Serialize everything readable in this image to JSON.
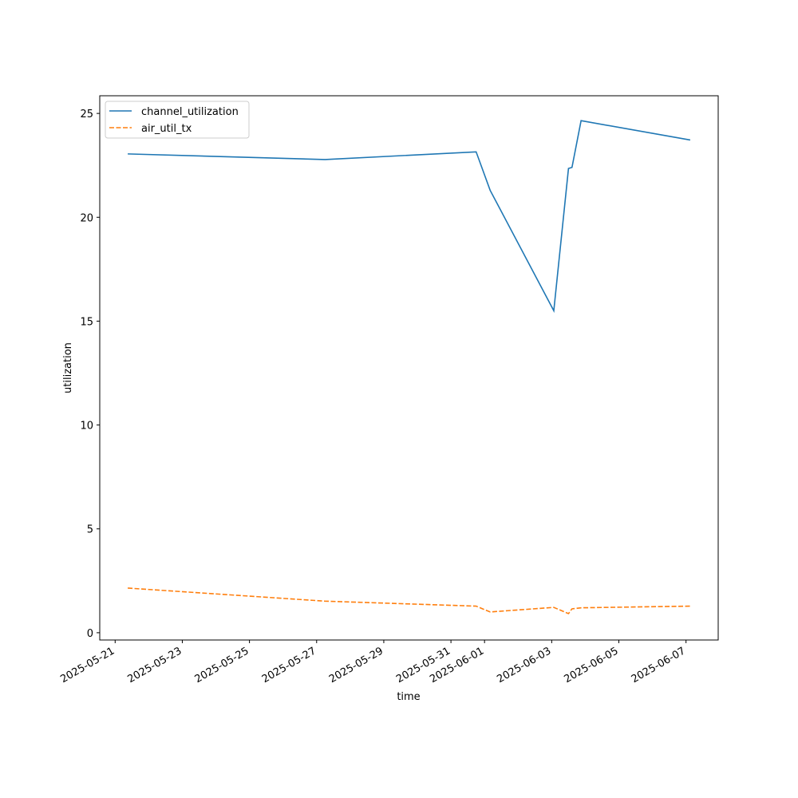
{
  "chart_data": {
    "type": "line",
    "x": [
      "2025-05-21T09:00Z",
      "2025-05-27T06:00Z",
      "2025-05-31T18:00Z",
      "2025-06-01T04:00Z",
      "2025-06-03T01:30Z",
      "2025-06-03T12:00Z",
      "2025-06-03T14:30Z",
      "2025-06-03T21:00Z",
      "2025-06-07T03:00Z"
    ],
    "series": [
      {
        "name": "channel_utilization",
        "color": "#1f77b4",
        "dash": "solid",
        "values": [
          23.05,
          22.78,
          23.15,
          21.3,
          15.5,
          22.35,
          22.4,
          24.65,
          23.72
        ]
      },
      {
        "name": "air_util_tx",
        "color": "#ff7f0e",
        "dash": "dashed",
        "values": [
          2.15,
          1.52,
          1.28,
          1.0,
          1.22,
          0.92,
          1.15,
          1.2,
          1.28
        ]
      }
    ],
    "xlabel": "time",
    "ylabel": "utilization",
    "xlim": [
      "2025-05-20T13:00Z",
      "2025-06-07T23:00Z"
    ],
    "xticks": [
      "2025-05-21",
      "2025-05-23",
      "2025-05-25",
      "2025-05-27",
      "2025-05-29",
      "2025-05-31",
      "2025-06-01",
      "2025-06-03",
      "2025-06-05",
      "2025-06-07"
    ],
    "ylim": [
      -0.35,
      25.85
    ],
    "yticks": [
      0,
      5,
      10,
      15,
      20,
      25
    ],
    "legend": "upper left"
  }
}
